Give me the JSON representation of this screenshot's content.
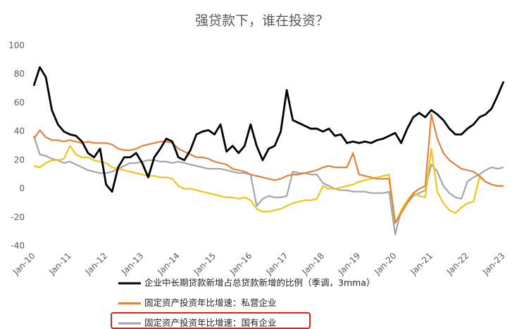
{
  "chart_data": {
    "type": "line",
    "title": "强贷款下，谁在投资？",
    "categories": [
      "Jan-10",
      null,
      null,
      null,
      null,
      null,
      "Jan-11",
      null,
      null,
      null,
      null,
      null,
      "Jan-12",
      null,
      null,
      null,
      null,
      null,
      "Jan-13",
      null,
      null,
      null,
      null,
      null,
      "Jan-14",
      null,
      null,
      null,
      null,
      null,
      "Jan-15",
      null,
      null,
      null,
      null,
      null,
      "Jan-16",
      null,
      null,
      null,
      null,
      null,
      "Jan-17",
      null,
      null,
      null,
      null,
      null,
      "Jan-18",
      null,
      null,
      null,
      null,
      null,
      "Jan-19",
      null,
      null,
      null,
      null,
      null,
      "Jan-20",
      null,
      null,
      null,
      null,
      null,
      "Jan-21",
      null,
      null,
      null,
      null,
      null,
      "Jan-22",
      null,
      null,
      null,
      null,
      null,
      "Jan-23"
    ],
    "series": [
      {
        "name": "企业中长期贷款新增占总贷款新增的比例（季调，3mma）",
        "color": "#000000",
        "values": [
          72,
          85,
          78,
          55,
          45,
          40,
          38,
          37,
          33,
          25,
          22,
          28,
          3,
          -2,
          15,
          22,
          22,
          25,
          18,
          8,
          22,
          28,
          35,
          33,
          22,
          20,
          27,
          38,
          40,
          41,
          38,
          45,
          26,
          30,
          25,
          30,
          45,
          30,
          20,
          28,
          30,
          40,
          69,
          48,
          46,
          44,
          42,
          42,
          40,
          42,
          37,
          38,
          32,
          33,
          32,
          33,
          32,
          34,
          35,
          37,
          39,
          32,
          42,
          50,
          53,
          50,
          55,
          52,
          48,
          42,
          38,
          38,
          42,
          45,
          50,
          52,
          56,
          65,
          75
        ]
      },
      {
        "name": "固定资产投资年比增速：私营企业",
        "color": "#e2823c",
        "values": [
          35,
          41,
          36,
          34,
          34,
          33,
          34,
          33,
          32,
          33,
          32,
          32,
          32,
          31,
          28,
          27,
          27,
          28,
          30,
          31,
          32,
          33,
          33,
          32,
          28,
          26,
          24,
          22,
          22,
          21,
          19,
          18,
          17,
          14,
          13,
          12,
          10,
          9,
          8,
          7,
          6,
          7,
          9,
          10,
          10,
          11,
          12,
          13,
          15,
          16,
          15,
          15,
          15,
          25,
          10,
          9,
          8,
          7,
          7,
          7,
          -24,
          -17,
          -10,
          -3,
          0,
          2,
          52,
          35,
          25,
          20,
          17,
          14,
          13,
          12,
          9,
          5,
          3,
          2,
          2
        ]
      },
      {
        "name": "固定资产投资年比增速：国有企业",
        "color": "#a5a5a5",
        "values": [
          37,
          24,
          23,
          21,
          20,
          18,
          19,
          17,
          15,
          13,
          12,
          11,
          11,
          12,
          14,
          16,
          18,
          18,
          19,
          20,
          20,
          19,
          19,
          18,
          19,
          18,
          17,
          16,
          15,
          14,
          14,
          14,
          13,
          12,
          11,
          11,
          10,
          -12,
          -7,
          -5,
          -6,
          -6,
          -5,
          12,
          11,
          11,
          10,
          10,
          4,
          2,
          0,
          -1,
          -1,
          -2,
          -2,
          -2,
          -3,
          -3,
          -3,
          -2,
          -32,
          -15,
          -10,
          -5,
          -3,
          -1,
          17,
          12,
          2,
          -3,
          -6,
          -7,
          5,
          8,
          10,
          13,
          15,
          14,
          15
        ]
      },
      {
        "color": "#f2c418",
        "values": [
          16,
          15,
          18,
          20,
          20,
          21,
          30,
          24,
          22,
          22,
          20,
          19,
          18,
          15,
          14,
          13,
          12,
          11,
          10,
          9,
          9,
          8,
          8,
          7,
          2,
          0,
          0,
          -1,
          -2,
          -3,
          -4,
          -5,
          -6,
          -6,
          -7,
          -6,
          -8,
          -14,
          -16,
          -16,
          -15,
          -14,
          -12,
          -10,
          -9,
          -8,
          -8,
          -7,
          2,
          0,
          0,
          1,
          2,
          3,
          5,
          6,
          7,
          8,
          9,
          10,
          -24,
          -15,
          -8,
          -3,
          -5,
          -6,
          28,
          -2,
          -10,
          -15,
          -17,
          -13,
          -10,
          -9,
          8,
          5,
          3,
          2,
          2
        ]
      }
    ],
    "ylim": [
      -40,
      100
    ],
    "yticks": [
      -40,
      -20,
      0,
      20,
      40,
      60,
      80,
      100
    ]
  }
}
